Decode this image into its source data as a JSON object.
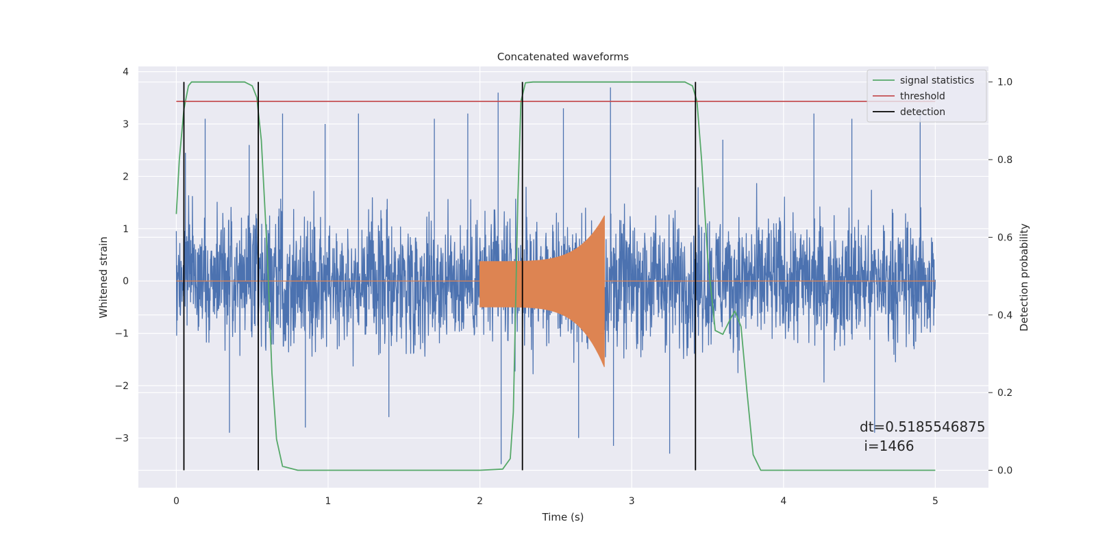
{
  "chart_data": {
    "type": "line",
    "title": "Concatenated waveforms",
    "xlabel": "Time (s)",
    "ylabel": "Whitened strain",
    "y2label": "Detection probability",
    "xlim": [
      -0.25,
      5.35
    ],
    "ylim": [
      -3.95,
      4.1
    ],
    "y2lim": [
      -0.045,
      1.04
    ],
    "x_ticks": [
      0,
      1,
      2,
      3,
      4,
      5
    ],
    "y_ticks": [
      -3,
      -2,
      -1,
      0,
      1,
      2,
      3,
      4
    ],
    "y2_ticks": [
      0.0,
      0.2,
      0.4,
      0.6,
      0.8,
      1.0
    ],
    "grid": true,
    "legend_position": "top-right",
    "series": [
      {
        "name": "",
        "axis": "left",
        "color": "#4c72b0",
        "description": "whitened noisy strain, t = 0 to 5 s",
        "x_range": [
          0,
          5
        ],
        "envelope_typical": 1.5,
        "peaks": [
          {
            "x": 0.06,
            "y": 2.45
          },
          {
            "x": 0.19,
            "y": 3.1
          },
          {
            "x": 0.35,
            "y": -2.9
          },
          {
            "x": 0.48,
            "y": 2.6
          },
          {
            "x": 0.7,
            "y": 3.2
          },
          {
            "x": 0.85,
            "y": -2.8
          },
          {
            "x": 0.98,
            "y": 3.0
          },
          {
            "x": 1.2,
            "y": 3.2
          },
          {
            "x": 1.4,
            "y": -2.6
          },
          {
            "x": 1.7,
            "y": 3.1
          },
          {
            "x": 1.92,
            "y": 3.2
          },
          {
            "x": 2.12,
            "y": 3.6
          },
          {
            "x": 2.14,
            "y": -3.5
          },
          {
            "x": 2.55,
            "y": 3.3
          },
          {
            "x": 2.65,
            "y": -3.0
          },
          {
            "x": 2.86,
            "y": 3.7
          },
          {
            "x": 2.88,
            "y": -3.15
          },
          {
            "x": 3.25,
            "y": -3.3
          },
          {
            "x": 3.6,
            "y": 2.7
          },
          {
            "x": 4.2,
            "y": 3.2
          },
          {
            "x": 4.45,
            "y": 3.1
          },
          {
            "x": 4.6,
            "y": -2.9
          },
          {
            "x": 4.9,
            "y": 3.2
          }
        ]
      },
      {
        "name": "",
        "axis": "left",
        "color": "#dd8452",
        "description": "injected chirp waveform (zero outside 2.0–2.82 s)",
        "x_range": [
          0,
          5
        ],
        "chirp_start": 2.0,
        "chirp_end": 2.82,
        "amplitude_start": 0.38,
        "amplitude_peak": 1.25,
        "amplitude_peak_neg": -1.65
      },
      {
        "name": "signal statistics",
        "axis": "right",
        "color": "#55a868",
        "x": [
          0,
          0.02,
          0.05,
          0.08,
          0.1,
          0.13,
          0.2,
          0.3,
          0.45,
          0.5,
          0.53,
          0.56,
          0.6,
          0.63,
          0.66,
          0.7,
          0.8,
          1.0,
          1.5,
          2.0,
          2.15,
          2.2,
          2.22,
          2.25,
          2.27,
          2.3,
          2.35,
          2.5,
          3.0,
          3.35,
          3.4,
          3.43,
          3.46,
          3.5,
          3.55,
          3.6,
          3.65,
          3.68,
          3.72,
          3.76,
          3.8,
          3.85,
          4.0,
          4.5,
          5.0
        ],
        "y": [
          0.66,
          0.8,
          0.93,
          0.99,
          1.0,
          1.0,
          1.0,
          1.0,
          1.0,
          0.99,
          0.96,
          0.85,
          0.55,
          0.25,
          0.08,
          0.01,
          0.0,
          0.0,
          0.0,
          0.0,
          0.003,
          0.03,
          0.15,
          0.7,
          0.95,
          0.998,
          1.0,
          1.0,
          1.0,
          1.0,
          0.99,
          0.95,
          0.8,
          0.55,
          0.36,
          0.35,
          0.39,
          0.41,
          0.37,
          0.2,
          0.04,
          0.0,
          0.0,
          0.0,
          0.0
        ]
      },
      {
        "name": "threshold",
        "axis": "right",
        "color": "#c44e52",
        "x": [
          0,
          5
        ],
        "y": [
          0.95,
          0.95
        ]
      },
      {
        "name": "detection",
        "axis": "right",
        "color": "#000000",
        "vlines": [
          0.05,
          0.54,
          2.28,
          3.42
        ],
        "ymin": 0.0,
        "ymax": 1.0
      }
    ],
    "annotation": {
      "lines": [
        "dt=0.5185546875",
        " i=1466"
      ],
      "x": 4.5,
      "y": 0.1,
      "axis": "right"
    }
  }
}
